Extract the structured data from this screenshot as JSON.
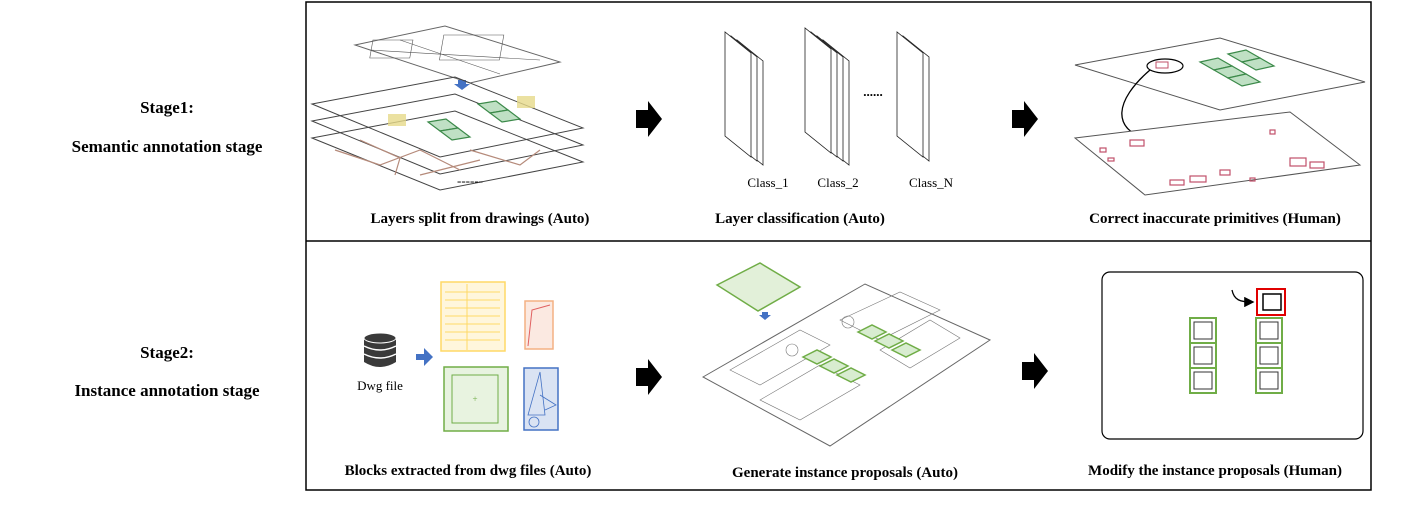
{
  "stages": [
    {
      "title": "Stage1:",
      "subtitle": "Semantic annotation stage"
    },
    {
      "title": "Stage2:",
      "subtitle": "Instance annotation stage"
    }
  ],
  "stage1": {
    "captions": [
      "Layers split from drawings  (Auto)",
      "Layer classification  (Auto)",
      "Correct inaccurate primitives  (Human)"
    ],
    "class_labels": [
      "Class_1",
      "Class_2",
      "Class_N"
    ],
    "ellipsis": "......",
    "dashes": "------"
  },
  "stage2": {
    "captions": [
      "Blocks extracted from dwg files  (Auto)",
      "Generate instance proposals  (Auto)",
      "Modify the instance proposals  (Human)"
    ],
    "dwg_label": "Dwg file"
  },
  "colors": {
    "arrow": "#000000",
    "blue_arrow": "#4472c4",
    "green_block": "#70ad47",
    "yellow_block": "#ffd966",
    "red_block": "#f4b183",
    "blue_block": "#4472c4",
    "highlight_red": "#e00000",
    "primitive_red": "#c0506a"
  }
}
